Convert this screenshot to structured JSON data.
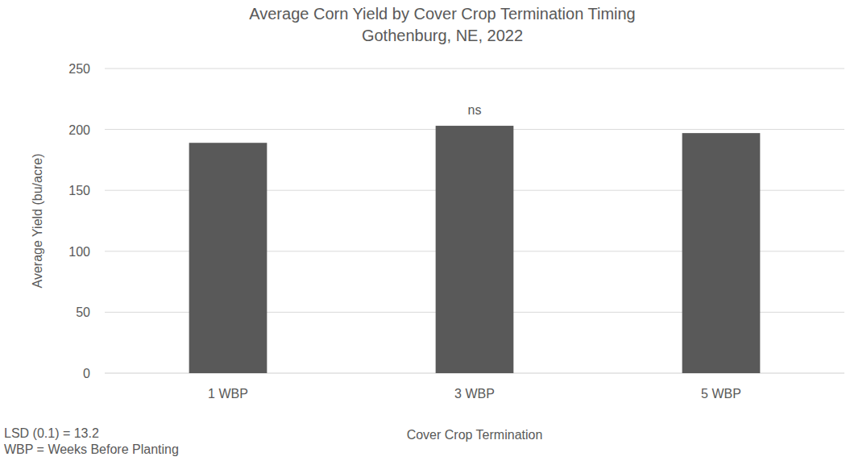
{
  "chart_data": {
    "type": "bar",
    "title": "Average Corn Yield by Cover Crop Termination Timing",
    "subtitle": "Gothenburg, NE, 2022",
    "xlabel": "Cover Crop Termination",
    "ylabel": "Average Yield (bu/acre)",
    "categories": [
      "1 WBP",
      "3 WBP",
      "5 WBP"
    ],
    "values": [
      189,
      203,
      197
    ],
    "color": "#595959",
    "ylim": [
      0,
      250
    ],
    "yticks": [
      0,
      50,
      100,
      150,
      200,
      250
    ],
    "grid": true,
    "annotations": [
      {
        "text": "ns",
        "x": "3 WBP"
      }
    ],
    "notes": [
      "LSD (0.1) = 13.2",
      "WBP = Weeks Before Planting"
    ]
  }
}
